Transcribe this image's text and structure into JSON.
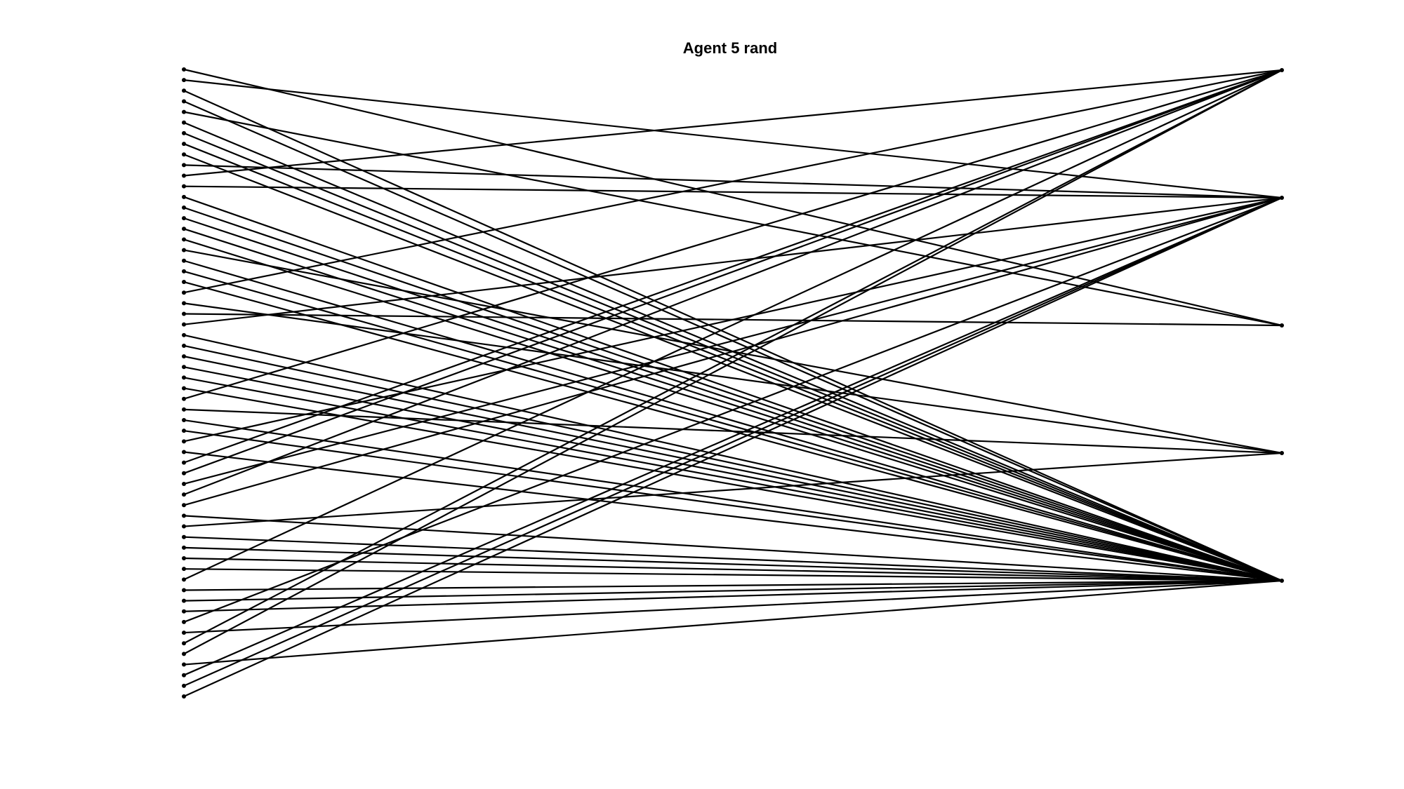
{
  "title": "Agent 5 rand",
  "colors": {
    "edge": "#000000",
    "node": "#000000",
    "background": "#ffffff"
  },
  "left_node_count": 60,
  "right_node_count": 5,
  "edges": [
    [
      0,
      2
    ],
    [
      1,
      1
    ],
    [
      2,
      4
    ],
    [
      3,
      4
    ],
    [
      4,
      2
    ],
    [
      5,
      4
    ],
    [
      6,
      4
    ],
    [
      7,
      4
    ],
    [
      8,
      4
    ],
    [
      9,
      1
    ],
    [
      10,
      0
    ],
    [
      11,
      1
    ],
    [
      12,
      4
    ],
    [
      13,
      4
    ],
    [
      14,
      4
    ],
    [
      15,
      4
    ],
    [
      16,
      4
    ],
    [
      17,
      3
    ],
    [
      18,
      4
    ],
    [
      19,
      4
    ],
    [
      20,
      4
    ],
    [
      21,
      0
    ],
    [
      22,
      3
    ],
    [
      23,
      2
    ],
    [
      24,
      1
    ],
    [
      25,
      4
    ],
    [
      26,
      4
    ],
    [
      27,
      4
    ],
    [
      28,
      4
    ],
    [
      29,
      4
    ],
    [
      30,
      4
    ],
    [
      31,
      0
    ],
    [
      32,
      3
    ],
    [
      33,
      4
    ],
    [
      34,
      4
    ],
    [
      35,
      1
    ],
    [
      36,
      4
    ],
    [
      37,
      0
    ],
    [
      38,
      0
    ],
    [
      39,
      1
    ],
    [
      40,
      0
    ],
    [
      41,
      1
    ],
    [
      42,
      4
    ],
    [
      43,
      3
    ],
    [
      44,
      4
    ],
    [
      45,
      4
    ],
    [
      46,
      4
    ],
    [
      47,
      4
    ],
    [
      48,
      0
    ],
    [
      49,
      4
    ],
    [
      50,
      4
    ],
    [
      51,
      4
    ],
    [
      52,
      1
    ],
    [
      53,
      4
    ],
    [
      54,
      0
    ],
    [
      55,
      0
    ],
    [
      56,
      4
    ],
    [
      57,
      1
    ],
    [
      58,
      1
    ],
    [
      59,
      1
    ]
  ]
}
